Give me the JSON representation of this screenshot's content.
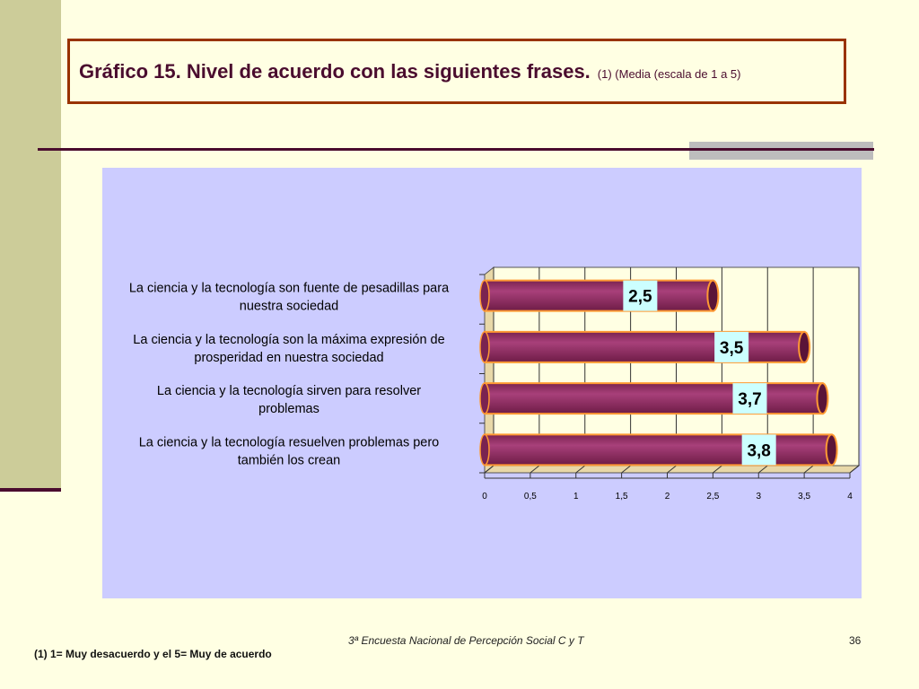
{
  "slide": {
    "title": "Gráfico 15. Nivel de acuerdo con las siguientes frases.",
    "subtitle": "(1) (Media (escala de 1 a 5)",
    "footer": "3ª Encuesta Nacional de Percepción Social C y T",
    "page_number": "36",
    "footnote": "(1) 1= Muy desacuerdo  y el 5= Muy de acuerdo"
  },
  "colors": {
    "bar_fill": "#993366",
    "bar_outline": "#FF9933",
    "label_box": "#CCFFFF",
    "panel": "#CCCCFF"
  },
  "chart_data": {
    "type": "bar",
    "orientation": "horizontal",
    "categories": [
      [
        "La ciencia y la tecnología son fuente de pesadillas para",
        "nuestra sociedad"
      ],
      [
        "La ciencia y la tecnología son la máxima expresión de",
        "prosperidad en nuestra sociedad"
      ],
      [
        "La ciencia y la tecnología sirven para resolver",
        "problemas"
      ],
      [
        "La ciencia y la tecnología resuelven problemas pero",
        "también los crean"
      ]
    ],
    "values": [
      2.5,
      3.5,
      3.7,
      3.8
    ],
    "value_labels": [
      "2,5",
      "3,5",
      "3,7",
      "3,8"
    ],
    "xlim": [
      0,
      4
    ],
    "ticks": [
      0,
      0.5,
      1,
      1.5,
      2,
      2.5,
      3,
      3.5,
      4
    ],
    "tick_labels": [
      "0",
      "0,5",
      "1",
      "1,5",
      "2",
      "2,5",
      "3",
      "3,5",
      "4"
    ],
    "grid": true
  }
}
